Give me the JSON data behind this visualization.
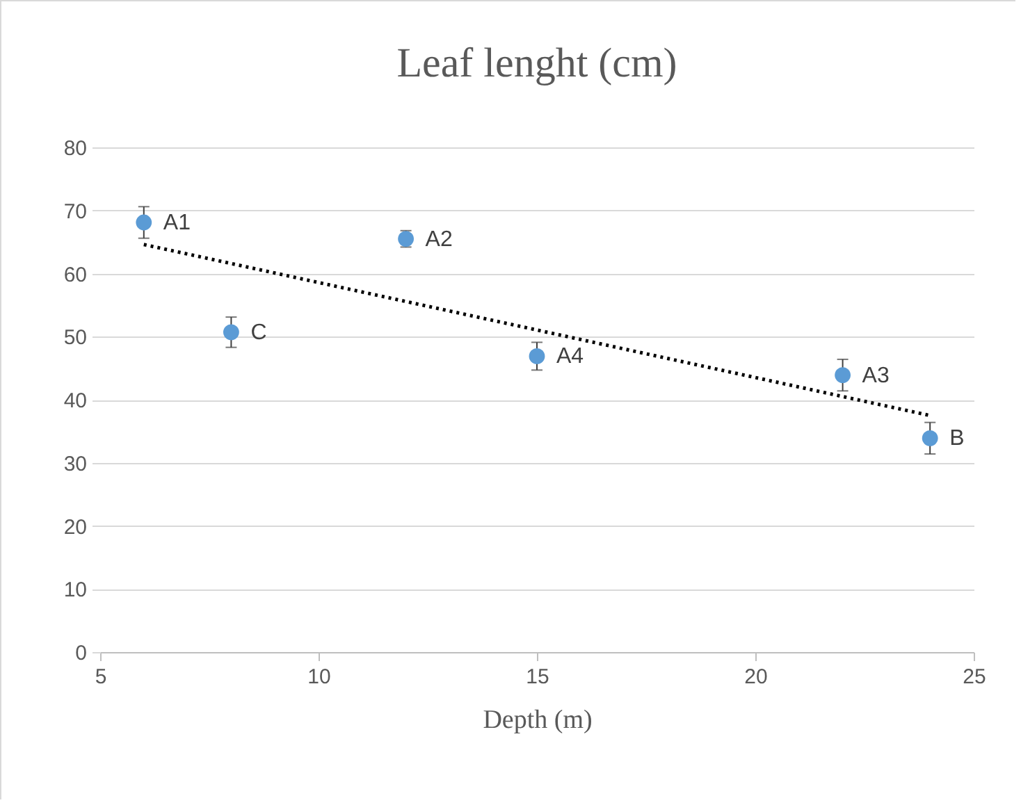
{
  "chart_data": {
    "type": "scatter",
    "title": "Leaf lenght (cm)",
    "xlabel": "Depth (m)",
    "xlim": [
      5,
      25
    ],
    "xticks": [
      5,
      10,
      15,
      20,
      25
    ],
    "ylim": [
      0,
      80
    ],
    "yticks": [
      0,
      10,
      20,
      30,
      40,
      50,
      60,
      70,
      80
    ],
    "grid": "y",
    "series": [
      {
        "type": "scatter",
        "marker": "circle",
        "color": "#5b9bd5",
        "x": [
          6,
          8,
          12,
          15,
          22,
          24
        ],
        "values": [
          68.1,
          50.7,
          65.5,
          46.9,
          43.9,
          33.9
        ],
        "errors": [
          2.5,
          2.4,
          1.3,
          2.2,
          2.5,
          2.5
        ]
      },
      {
        "type": "line",
        "color": "#000000",
        "line_style": "dotted",
        "x": [
          6,
          24
        ],
        "values": [
          64.6,
          37.5
        ]
      }
    ],
    "annotations": [
      {
        "text": "A1",
        "x": 6,
        "y": 68.1
      },
      {
        "text": "C",
        "x": 8,
        "y": 50.7
      },
      {
        "text": "A2",
        "x": 12,
        "y": 65.5
      },
      {
        "text": "A4",
        "x": 15,
        "y": 46.9
      },
      {
        "text": "A3",
        "x": 22,
        "y": 43.9
      },
      {
        "text": "B",
        "x": 24,
        "y": 33.9
      }
    ]
  }
}
